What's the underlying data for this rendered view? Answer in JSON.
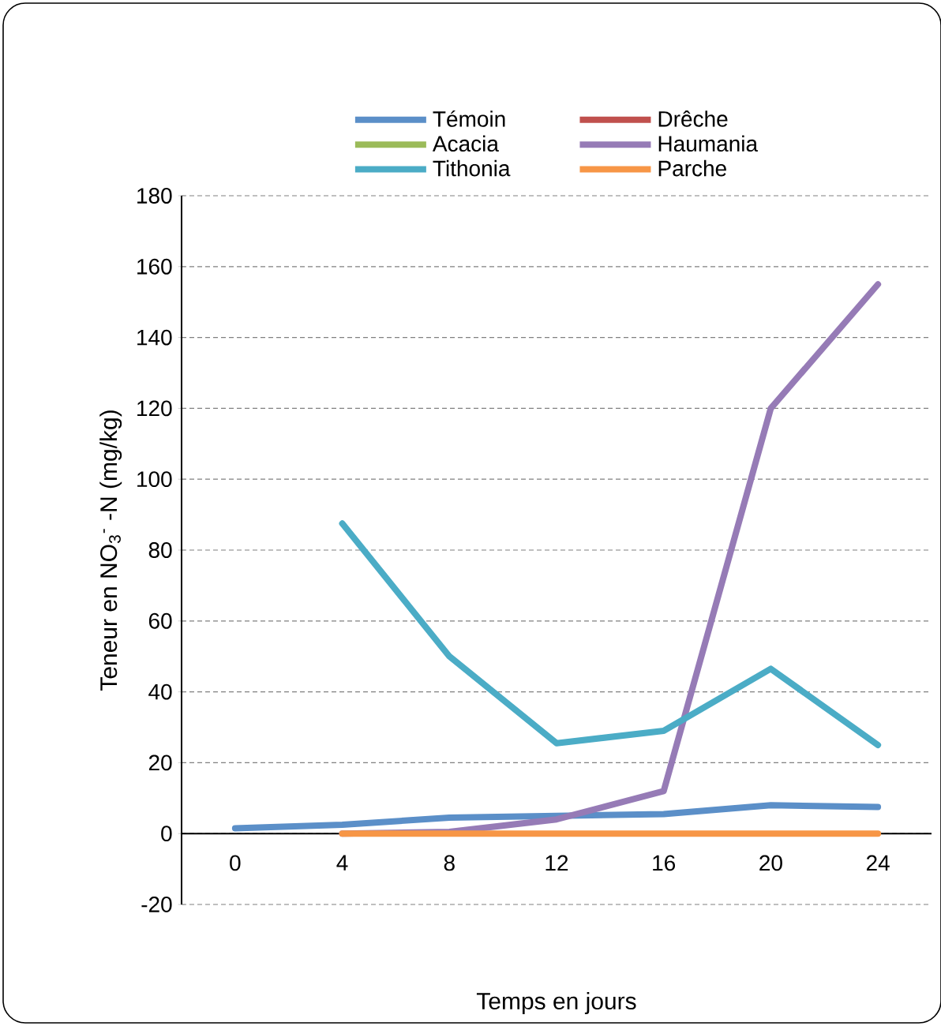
{
  "chart_data": {
    "type": "line",
    "xlabel": "Temps en jours",
    "ylabel": "Teneur en NO$_{3}$$^{-}$ -N (mg/kg)",
    "categories": [
      "0",
      "4",
      "8",
      "12",
      "16",
      "20",
      "24"
    ],
    "series": [
      {
        "name": "Témoin",
        "color": "#5b8fc8",
        "values": [
          1.5,
          2.5,
          4.5,
          5,
          5.5,
          8,
          7.5
        ]
      },
      {
        "name": "Drêche",
        "color": "#c0504d",
        "values": [
          null,
          null,
          null,
          null,
          null,
          null,
          null
        ]
      },
      {
        "name": "Acacia",
        "color": "#9bbb59",
        "values": [
          null,
          null,
          null,
          null,
          null,
          null,
          null
        ]
      },
      {
        "name": "Haumania",
        "color": "#967bb6",
        "values": [
          null,
          0,
          0.5,
          4,
          12,
          120,
          155
        ]
      },
      {
        "name": "Tithonia",
        "color": "#4bacc6",
        "values": [
          null,
          87.5,
          50,
          25.5,
          29,
          46.5,
          25
        ]
      },
      {
        "name": "Parche",
        "color": "#f79646",
        "values": [
          null,
          0,
          0,
          0,
          0,
          0,
          0
        ]
      }
    ],
    "ylim": [
      -20,
      180
    ],
    "yticks": [
      -20,
      0,
      20,
      40,
      60,
      80,
      100,
      120,
      140,
      160,
      180
    ],
    "grid": "y",
    "legend": "top",
    "marker": "none",
    "line_style": "solid"
  }
}
